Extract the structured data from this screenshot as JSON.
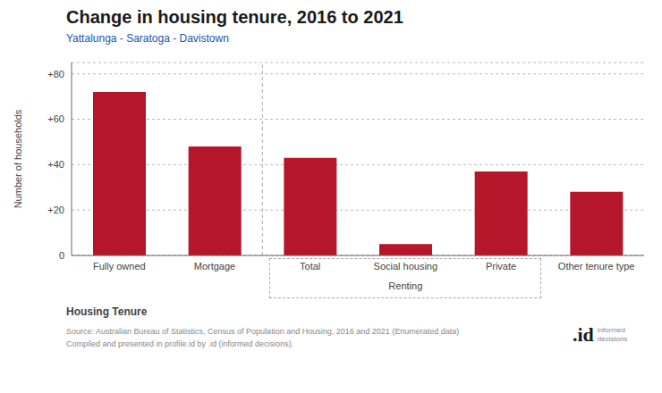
{
  "chart_data": {
    "type": "bar",
    "title": "Change in housing tenure, 2016 to 2021",
    "subtitle": "Yattalunga - Saratoga - Davistown",
    "categories": [
      "Fully owned",
      "Mortgage",
      "Total",
      "Social housing",
      "Private",
      "Other tenure type"
    ],
    "values": [
      72,
      48,
      43,
      5,
      37,
      28
    ],
    "color": "#b5162a",
    "xlabel": "Housing Tenure",
    "ylabel": "Number of households",
    "ylim": [
      0,
      85
    ],
    "yticks": [
      0,
      {
        "value": 20,
        "label": "+20"
      },
      {
        "value": 40,
        "label": "+40"
      },
      {
        "value": 60,
        "label": "+60"
      },
      {
        "value": 80,
        "label": "+80"
      }
    ],
    "grid": true,
    "annotations": [
      "Renting"
    ],
    "footer": [
      "Source: Australian Bureau of Statistics, Census of Population and Housing, 2016 and 2021 (Enumerated data)",
      "Compiled and presented in profile.id by .id (informed decisions)."
    ],
    "logo": [
      ".id",
      "informed",
      "decisions"
    ]
  }
}
